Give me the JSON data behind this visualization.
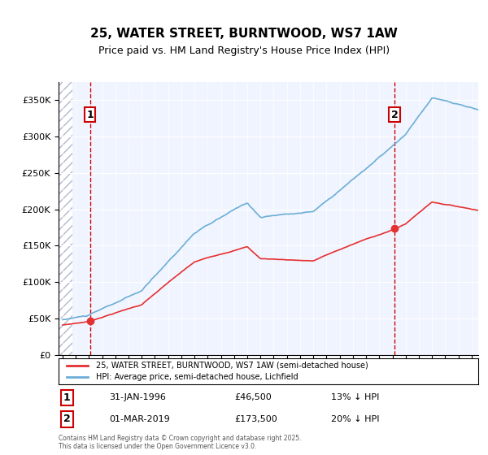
{
  "title": "25, WATER STREET, BURNTWOOD, WS7 1AW",
  "subtitle": "Price paid vs. HM Land Registry's House Price Index (HPI)",
  "legend_line1": "25, WATER STREET, BURNTWOOD, WS7 1AW (semi-detached house)",
  "legend_line2": "HPI: Average price, semi-detached house, Lichfield",
  "annotation1_label": "1",
  "annotation1_date": "31-JAN-1996",
  "annotation1_price": "£46,500",
  "annotation1_hpi": "13% ↓ HPI",
  "annotation2_label": "2",
  "annotation2_date": "01-MAR-2019",
  "annotation2_price": "£173,500",
  "annotation2_hpi": "20% ↓ HPI",
  "footer": "Contains HM Land Registry data © Crown copyright and database right 2025.\nThis data is licensed under the Open Government Licence v3.0.",
  "hpi_color": "#6baed6",
  "price_color": "#e53030",
  "annotation_box_color": "#cc0000",
  "dashed_line_color": "#cc0000",
  "background_plot": "#f0f4ff",
  "hatch_color": "#d0d8e8",
  "ylim_max": 375000,
  "ylim_min": 0,
  "year_start": 1994,
  "year_end": 2025,
  "transaction1_year": 1996.08,
  "transaction1_value": 46500,
  "transaction2_year": 2019.17,
  "transaction2_value": 173500
}
